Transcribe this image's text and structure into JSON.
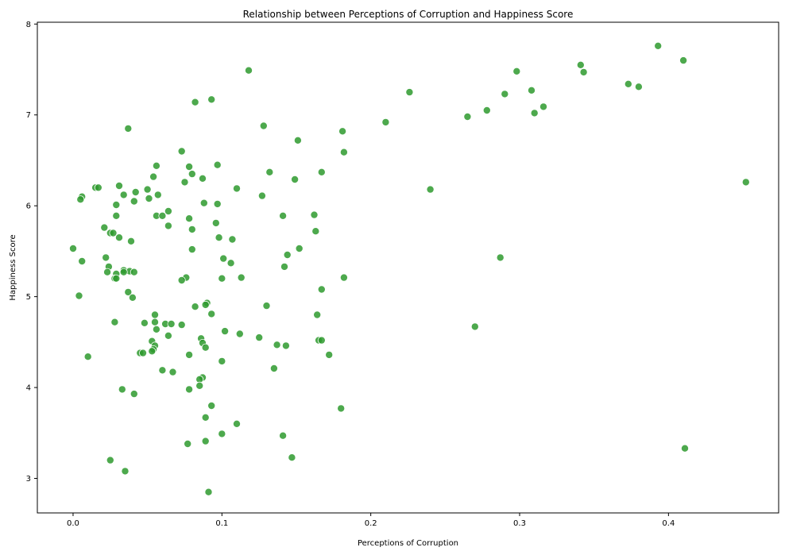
{
  "chart_data": {
    "type": "scatter",
    "title": "Relationship between Perceptions of Corruption and Happiness Score",
    "xlabel": "Perceptions of Corruption",
    "ylabel": "Happiness Score",
    "xlim": [
      -0.024,
      0.474
    ],
    "ylim": [
      2.62,
      8.02
    ],
    "xticks": [
      0.0,
      0.1,
      0.2,
      0.3,
      0.4
    ],
    "xtick_labels": [
      "0.0",
      "0.1",
      "0.2",
      "0.3",
      "0.4"
    ],
    "yticks": [
      3,
      4,
      5,
      6,
      7,
      8
    ],
    "ytick_labels": [
      "3",
      "4",
      "5",
      "6",
      "7",
      "8"
    ],
    "grid": false,
    "legend": "none",
    "marker_color": "#2e9a2e",
    "marker_edge_color": "#ffffff",
    "marker_opacity": 0.85,
    "points": [
      [
        0.393,
        7.76
      ],
      [
        0.41,
        7.6
      ],
      [
        0.118,
        7.49
      ],
      [
        0.298,
        7.48
      ],
      [
        0.341,
        7.55
      ],
      [
        0.343,
        7.47
      ],
      [
        0.226,
        7.25
      ],
      [
        0.373,
        7.34
      ],
      [
        0.38,
        7.31
      ],
      [
        0.29,
        7.23
      ],
      [
        0.308,
        7.27
      ],
      [
        0.082,
        7.14
      ],
      [
        0.093,
        7.17
      ],
      [
        0.278,
        7.05
      ],
      [
        0.316,
        7.09
      ],
      [
        0.31,
        7.02
      ],
      [
        0.265,
        6.98
      ],
      [
        0.21,
        6.92
      ],
      [
        0.128,
        6.88
      ],
      [
        0.037,
        6.85
      ],
      [
        0.181,
        6.82
      ],
      [
        0.151,
        6.72
      ],
      [
        0.073,
        6.6
      ],
      [
        0.182,
        6.59
      ],
      [
        0.056,
        6.44
      ],
      [
        0.078,
        6.43
      ],
      [
        0.097,
        6.45
      ],
      [
        0.08,
        6.35
      ],
      [
        0.132,
        6.37
      ],
      [
        0.167,
        6.37
      ],
      [
        0.054,
        6.32
      ],
      [
        0.087,
        6.3
      ],
      [
        0.149,
        6.29
      ],
      [
        0.452,
        6.26
      ],
      [
        0.075,
        6.26
      ],
      [
        0.031,
        6.22
      ],
      [
        0.015,
        6.2
      ],
      [
        0.017,
        6.2
      ],
      [
        0.11,
        6.19
      ],
      [
        0.05,
        6.18
      ],
      [
        0.24,
        6.18
      ],
      [
        0.042,
        6.15
      ],
      [
        0.034,
        6.12
      ],
      [
        0.057,
        6.12
      ],
      [
        0.006,
        6.1
      ],
      [
        0.127,
        6.11
      ],
      [
        0.051,
        6.08
      ],
      [
        0.005,
        6.07
      ],
      [
        0.041,
        6.05
      ],
      [
        0.088,
        6.03
      ],
      [
        0.029,
        6.01
      ],
      [
        0.097,
        6.02
      ],
      [
        0.064,
        5.94
      ],
      [
        0.056,
        5.89
      ],
      [
        0.06,
        5.89
      ],
      [
        0.029,
        5.89
      ],
      [
        0.141,
        5.89
      ],
      [
        0.162,
        5.9
      ],
      [
        0.078,
        5.86
      ],
      [
        0.096,
        5.81
      ],
      [
        0.064,
        5.78
      ],
      [
        0.021,
        5.76
      ],
      [
        0.08,
        5.74
      ],
      [
        0.163,
        5.72
      ],
      [
        0.025,
        5.7
      ],
      [
        0.027,
        5.7
      ],
      [
        0.031,
        5.65
      ],
      [
        0.098,
        5.65
      ],
      [
        0.107,
        5.63
      ],
      [
        0.039,
        5.61
      ],
      [
        0.0,
        5.53
      ],
      [
        0.08,
        5.52
      ],
      [
        0.152,
        5.53
      ],
      [
        0.144,
        5.46
      ],
      [
        0.022,
        5.43
      ],
      [
        0.101,
        5.42
      ],
      [
        0.287,
        5.43
      ],
      [
        0.006,
        5.39
      ],
      [
        0.106,
        5.37
      ],
      [
        0.024,
        5.33
      ],
      [
        0.142,
        5.33
      ],
      [
        0.034,
        5.29
      ],
      [
        0.038,
        5.28
      ],
      [
        0.023,
        5.27
      ],
      [
        0.034,
        5.27
      ],
      [
        0.041,
        5.27
      ],
      [
        0.029,
        5.25
      ],
      [
        0.076,
        5.21
      ],
      [
        0.113,
        5.21
      ],
      [
        0.182,
        5.21
      ],
      [
        0.028,
        5.2
      ],
      [
        0.029,
        5.2
      ],
      [
        0.1,
        5.2
      ],
      [
        0.073,
        5.18
      ],
      [
        0.167,
        5.08
      ],
      [
        0.037,
        5.05
      ],
      [
        0.004,
        5.01
      ],
      [
        0.04,
        4.99
      ],
      [
        0.09,
        4.93
      ],
      [
        0.089,
        4.91
      ],
      [
        0.13,
        4.9
      ],
      [
        0.082,
        4.89
      ],
      [
        0.093,
        4.81
      ],
      [
        0.164,
        4.8
      ],
      [
        0.055,
        4.8
      ],
      [
        0.048,
        4.71
      ],
      [
        0.055,
        4.72
      ],
      [
        0.062,
        4.7
      ],
      [
        0.066,
        4.7
      ],
      [
        0.073,
        4.69
      ],
      [
        0.028,
        4.72
      ],
      [
        0.27,
        4.67
      ],
      [
        0.056,
        4.64
      ],
      [
        0.102,
        4.62
      ],
      [
        0.112,
        4.59
      ],
      [
        0.064,
        4.57
      ],
      [
        0.125,
        4.55
      ],
      [
        0.086,
        4.54
      ],
      [
        0.165,
        4.52
      ],
      [
        0.167,
        4.52
      ],
      [
        0.053,
        4.51
      ],
      [
        0.087,
        4.49
      ],
      [
        0.055,
        4.46
      ],
      [
        0.137,
        4.47
      ],
      [
        0.143,
        4.46
      ],
      [
        0.089,
        4.44
      ],
      [
        0.054,
        4.42
      ],
      [
        0.053,
        4.4
      ],
      [
        0.045,
        4.38
      ],
      [
        0.047,
        4.38
      ],
      [
        0.078,
        4.36
      ],
      [
        0.172,
        4.36
      ],
      [
        0.01,
        4.34
      ],
      [
        0.1,
        4.29
      ],
      [
        0.135,
        4.21
      ],
      [
        0.06,
        4.19
      ],
      [
        0.067,
        4.17
      ],
      [
        0.087,
        4.11
      ],
      [
        0.085,
        4.09
      ],
      [
        0.085,
        4.02
      ],
      [
        0.033,
        3.98
      ],
      [
        0.078,
        3.98
      ],
      [
        0.041,
        3.93
      ],
      [
        0.093,
        3.8
      ],
      [
        0.18,
        3.77
      ],
      [
        0.089,
        3.67
      ],
      [
        0.11,
        3.6
      ],
      [
        0.1,
        3.49
      ],
      [
        0.141,
        3.47
      ],
      [
        0.089,
        3.41
      ],
      [
        0.077,
        3.38
      ],
      [
        0.411,
        3.33
      ],
      [
        0.147,
        3.23
      ],
      [
        0.025,
        3.2
      ],
      [
        0.035,
        3.08
      ],
      [
        0.091,
        2.85
      ]
    ]
  }
}
